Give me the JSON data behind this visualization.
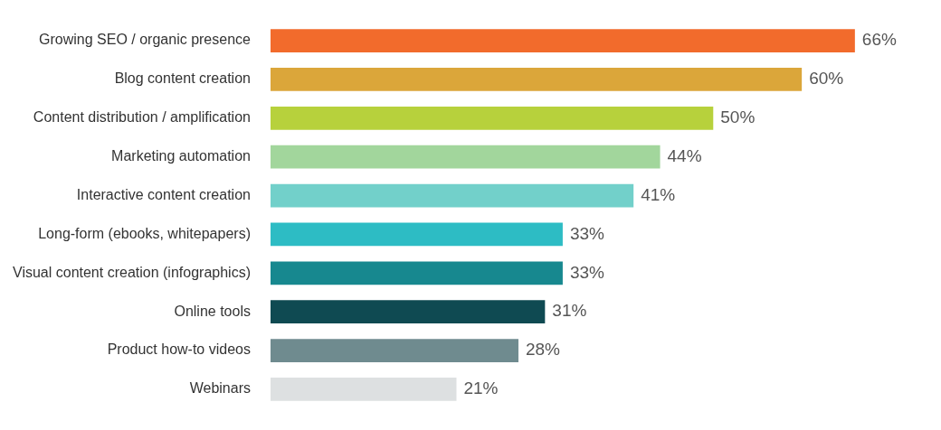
{
  "chart_data": {
    "type": "bar",
    "orientation": "horizontal",
    "categories": [
      "Growing SEO / organic presence",
      "Blog content creation",
      "Content distribution / amplification",
      "Marketing automation",
      "Interactive content creation",
      "Long-form (ebooks, whitepapers)",
      "Visual content creation (infographics)",
      "Online tools",
      "Product how-to videos",
      "Webinars"
    ],
    "values": [
      66,
      60,
      50,
      44,
      41,
      33,
      33,
      31,
      28,
      21
    ],
    "colors": [
      "#f26b2c",
      "#dba63a",
      "#b7d13c",
      "#a2d69c",
      "#72d0ca",
      "#2dbcc4",
      "#17888f",
      "#0f4a52",
      "#6f8b8f",
      "#dde0e1"
    ],
    "value_labels": [
      "66%",
      "60%",
      "50%",
      "44%",
      "41%",
      "33%",
      "33%",
      "31%",
      "28%",
      "21%"
    ],
    "legend": false
  }
}
